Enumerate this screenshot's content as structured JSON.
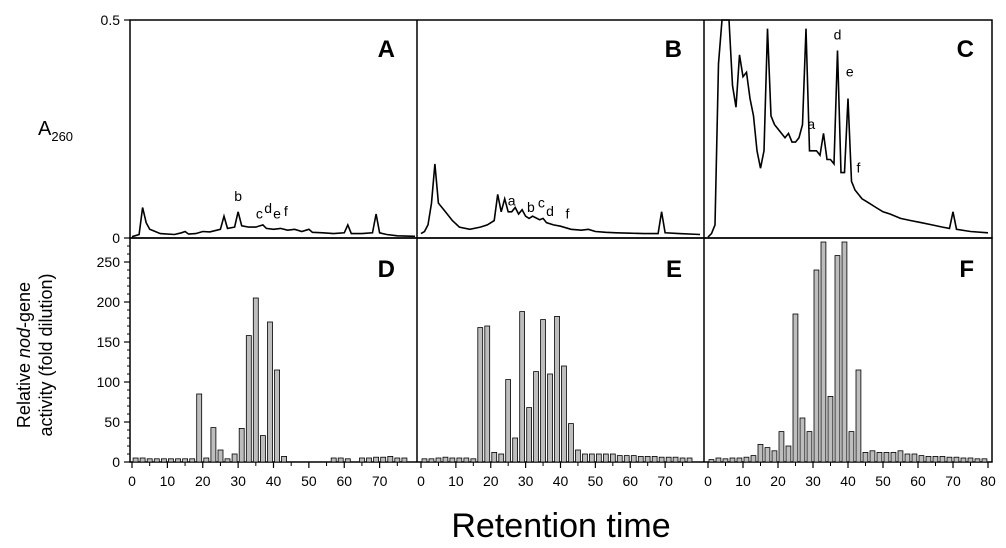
{
  "figure": {
    "x_title": "Retention time",
    "top_ylabel_main": "A",
    "top_ylabel_sub": "260",
    "bottom_ylabel_line1_pre": "Relative ",
    "bottom_ylabel_line1_em": "nod",
    "bottom_ylabel_line1_post": "-gene",
    "bottom_ylabel_line2": "activity (fold dilution)"
  },
  "chart_data": [
    {
      "panel": "A",
      "type": "line",
      "ylabel": "A260",
      "ylim": [
        0,
        0.5
      ],
      "xlim": [
        0,
        80
      ],
      "yticks": [
        {
          "v": 0,
          "label": "0"
        },
        {
          "v": 0.5,
          "label": "0.5"
        }
      ],
      "xy": [
        [
          0,
          0.003
        ],
        [
          2,
          0.008
        ],
        [
          3,
          0.07
        ],
        [
          4,
          0.035
        ],
        [
          5,
          0.02
        ],
        [
          8,
          0.01
        ],
        [
          12,
          0.008
        ],
        [
          14,
          0.012
        ],
        [
          15,
          0.015
        ],
        [
          16,
          0.009
        ],
        [
          18,
          0.01
        ],
        [
          20,
          0.015
        ],
        [
          22,
          0.014
        ],
        [
          25,
          0.02
        ],
        [
          26,
          0.05
        ],
        [
          27,
          0.022
        ],
        [
          29,
          0.025
        ],
        [
          30,
          0.06
        ],
        [
          31,
          0.028
        ],
        [
          33,
          0.025
        ],
        [
          35,
          0.025
        ],
        [
          37,
          0.03
        ],
        [
          38,
          0.022
        ],
        [
          40,
          0.02
        ],
        [
          42,
          0.022
        ],
        [
          44,
          0.018
        ],
        [
          46,
          0.02
        ],
        [
          48,
          0.015
        ],
        [
          50,
          0.02
        ],
        [
          51,
          0.013
        ],
        [
          54,
          0.012
        ],
        [
          57,
          0.01
        ],
        [
          60,
          0.012
        ],
        [
          61,
          0.03
        ],
        [
          62,
          0.01
        ],
        [
          65,
          0.01
        ],
        [
          68,
          0.012
        ],
        [
          69,
          0.055
        ],
        [
          70,
          0.012
        ],
        [
          72,
          0.008
        ],
        [
          75,
          0.005
        ],
        [
          80,
          0.004
        ]
      ],
      "annotations": [
        {
          "text": "b",
          "x": 30,
          "y": 0.085
        },
        {
          "text": "c",
          "x": 36,
          "y": 0.045
        },
        {
          "text": "d",
          "x": 38.5,
          "y": 0.057
        },
        {
          "text": "e",
          "x": 41,
          "y": 0.045
        },
        {
          "text": "f",
          "x": 43.5,
          "y": 0.05
        }
      ]
    },
    {
      "panel": "B",
      "type": "line",
      "ylim": [
        0,
        0.5
      ],
      "xlim": [
        0,
        80
      ],
      "xy": [
        [
          0,
          0.01
        ],
        [
          1,
          0.015
        ],
        [
          2,
          0.03
        ],
        [
          3,
          0.08
        ],
        [
          4,
          0.17
        ],
        [
          5,
          0.08
        ],
        [
          7,
          0.06
        ],
        [
          9,
          0.04
        ],
        [
          11,
          0.025
        ],
        [
          14,
          0.02
        ],
        [
          17,
          0.025
        ],
        [
          19,
          0.03
        ],
        [
          21,
          0.04
        ],
        [
          22,
          0.1
        ],
        [
          23,
          0.06
        ],
        [
          24,
          0.09
        ],
        [
          25,
          0.06
        ],
        [
          26,
          0.06
        ],
        [
          27,
          0.07
        ],
        [
          28,
          0.055
        ],
        [
          29,
          0.065
        ],
        [
          30,
          0.05
        ],
        [
          31,
          0.045
        ],
        [
          32,
          0.05
        ],
        [
          34,
          0.042
        ],
        [
          35,
          0.045
        ],
        [
          36,
          0.035
        ],
        [
          38,
          0.03
        ],
        [
          40,
          0.027
        ],
        [
          43,
          0.02
        ],
        [
          46,
          0.018
        ],
        [
          48,
          0.02
        ],
        [
          50,
          0.015
        ],
        [
          53,
          0.013
        ],
        [
          56,
          0.012
        ],
        [
          60,
          0.011
        ],
        [
          64,
          0.01
        ],
        [
          68,
          0.01
        ],
        [
          69,
          0.06
        ],
        [
          70,
          0.012
        ],
        [
          74,
          0.01
        ],
        [
          80,
          0.008
        ]
      ],
      "annotations": [
        {
          "text": "a",
          "x": 26,
          "y": 0.075
        },
        {
          "text": "b",
          "x": 31.5,
          "y": 0.06
        },
        {
          "text": "c",
          "x": 34.5,
          "y": 0.07
        },
        {
          "text": "d",
          "x": 37,
          "y": 0.05
        },
        {
          "text": "f",
          "x": 42,
          "y": 0.045
        }
      ]
    },
    {
      "panel": "C",
      "type": "line",
      "ylim": [
        0,
        0.5
      ],
      "xlim": [
        0,
        80
      ],
      "xy": [
        [
          0,
          0.002
        ],
        [
          1,
          0.01
        ],
        [
          2,
          0.03
        ],
        [
          3,
          0.4
        ],
        [
          4,
          0.5
        ],
        [
          5,
          0.5
        ],
        [
          6,
          0.5
        ],
        [
          7,
          0.35
        ],
        [
          8,
          0.3
        ],
        [
          9,
          0.42
        ],
        [
          10,
          0.37
        ],
        [
          11,
          0.38
        ],
        [
          12,
          0.32
        ],
        [
          13,
          0.28
        ],
        [
          14,
          0.2
        ],
        [
          15,
          0.16
        ],
        [
          16,
          0.2
        ],
        [
          17,
          0.48
        ],
        [
          18,
          0.28
        ],
        [
          19,
          0.26
        ],
        [
          20,
          0.25
        ],
        [
          21,
          0.24
        ],
        [
          22,
          0.23
        ],
        [
          23,
          0.24
        ],
        [
          24,
          0.22
        ],
        [
          25,
          0.22
        ],
        [
          26,
          0.23
        ],
        [
          27,
          0.26
        ],
        [
          28,
          0.48
        ],
        [
          29,
          0.2
        ],
        [
          30,
          0.2
        ],
        [
          31,
          0.2
        ],
        [
          32,
          0.19
        ],
        [
          33,
          0.24
        ],
        [
          34,
          0.18
        ],
        [
          35,
          0.18
        ],
        [
          36,
          0.17
        ],
        [
          37,
          0.43
        ],
        [
          38,
          0.15
        ],
        [
          39,
          0.15
        ],
        [
          40,
          0.32
        ],
        [
          41,
          0.13
        ],
        [
          42,
          0.11
        ],
        [
          43,
          0.1
        ],
        [
          44,
          0.09
        ],
        [
          46,
          0.08
        ],
        [
          48,
          0.07
        ],
        [
          50,
          0.06
        ],
        [
          52,
          0.055
        ],
        [
          55,
          0.045
        ],
        [
          58,
          0.04
        ],
        [
          61,
          0.035
        ],
        [
          64,
          0.03
        ],
        [
          67,
          0.025
        ],
        [
          69,
          0.022
        ],
        [
          70,
          0.06
        ],
        [
          71,
          0.02
        ],
        [
          75,
          0.015
        ],
        [
          80,
          0.012
        ]
      ],
      "annotations": [
        {
          "text": "a",
          "x": 29.5,
          "y": 0.25
        },
        {
          "text": "d",
          "x": 37,
          "y": 0.455
        },
        {
          "text": "e",
          "x": 40.5,
          "y": 0.37
        },
        {
          "text": "f",
          "x": 43,
          "y": 0.15
        }
      ]
    },
    {
      "panel": "D",
      "type": "bar",
      "ylabel": "Relative nod-gene activity (fold dilution)",
      "ylim": [
        0,
        280
      ],
      "xlim": [
        0,
        80
      ],
      "yticks": [
        {
          "v": 0,
          "label": "0"
        },
        {
          "v": 50,
          "label": "50"
        },
        {
          "v": 100,
          "label": "100"
        },
        {
          "v": 150,
          "label": "150"
        },
        {
          "v": 200,
          "label": "200"
        },
        {
          "v": 250,
          "label": "250"
        }
      ],
      "x": [
        0,
        2,
        4,
        6,
        8,
        10,
        12,
        14,
        16,
        18,
        20,
        22,
        24,
        26,
        28,
        30,
        32,
        34,
        36,
        38,
        40,
        42,
        56,
        58,
        60,
        64,
        66,
        68,
        70,
        72,
        74,
        76
      ],
      "values": [
        5,
        5,
        4,
        4,
        4,
        4,
        4,
        4,
        4,
        85,
        5,
        43,
        15,
        4,
        10,
        42,
        158,
        205,
        33,
        175,
        115,
        7,
        5,
        5,
        4,
        5,
        5,
        6,
        6,
        7,
        5,
        5
      ]
    },
    {
      "panel": "E",
      "type": "bar",
      "ylim": [
        0,
        280
      ],
      "xlim": [
        0,
        80
      ],
      "x": [
        0,
        2,
        4,
        6,
        8,
        10,
        12,
        14,
        16,
        18,
        20,
        22,
        24,
        26,
        28,
        30,
        32,
        34,
        36,
        38,
        40,
        42,
        44,
        46,
        48,
        50,
        52,
        54,
        56,
        58,
        60,
        62,
        64,
        66,
        68,
        70,
        72,
        74,
        76
      ],
      "values": [
        4,
        4,
        5,
        6,
        5,
        5,
        5,
        4,
        168,
        170,
        12,
        10,
        103,
        30,
        188,
        68,
        113,
        178,
        110,
        182,
        120,
        48,
        15,
        10,
        10,
        10,
        10,
        10,
        8,
        8,
        8,
        7,
        7,
        7,
        6,
        6,
        6,
        5,
        5
      ]
    },
    {
      "panel": "F",
      "type": "bar",
      "ylim": [
        0,
        280
      ],
      "xlim": [
        0,
        80
      ],
      "x": [
        0,
        2,
        4,
        6,
        8,
        10,
        12,
        14,
        16,
        18,
        20,
        22,
        24,
        26,
        28,
        30,
        32,
        34,
        36,
        38,
        40,
        42,
        44,
        46,
        48,
        50,
        52,
        54,
        56,
        58,
        60,
        62,
        64,
        66,
        68,
        70,
        72,
        74,
        76,
        78
      ],
      "values": [
        3,
        5,
        4,
        5,
        5,
        6,
        8,
        22,
        18,
        14,
        38,
        20,
        185,
        55,
        38,
        240,
        275,
        82,
        258,
        275,
        38,
        115,
        12,
        14,
        12,
        12,
        12,
        14,
        10,
        10,
        8,
        7,
        7,
        7,
        6,
        6,
        5,
        5,
        4,
        4
      ]
    }
  ],
  "x_ticks": {
    "left": [
      "0",
      "10",
      "20",
      "30",
      "40",
      "50",
      "60",
      "70"
    ],
    "middle": [
      "0",
      "10",
      "20",
      "30",
      "40",
      "50",
      "60",
      "70"
    ],
    "right": [
      "0",
      "10",
      "20",
      "30",
      "40",
      "50",
      "60",
      "70",
      "80"
    ]
  }
}
